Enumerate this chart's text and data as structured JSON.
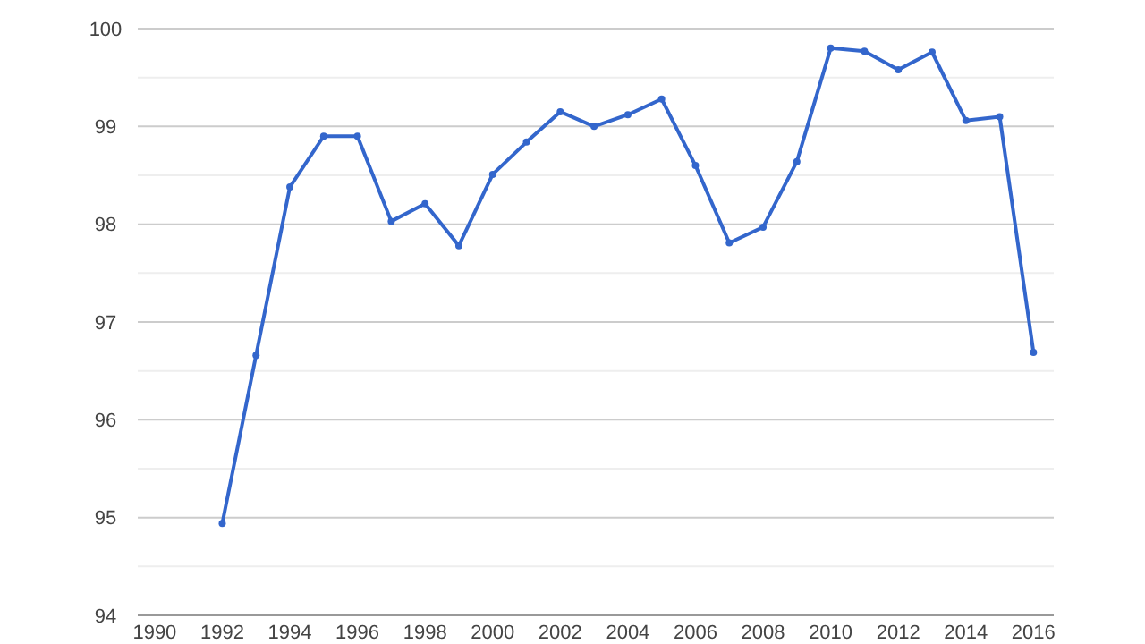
{
  "chart_data": {
    "type": "line",
    "x": [
      1992,
      1993,
      1994,
      1995,
      1996,
      1997,
      1998,
      1999,
      2000,
      2001,
      2002,
      2003,
      2004,
      2005,
      2006,
      2007,
      2008,
      2009,
      2010,
      2011,
      2012,
      2013,
      2014,
      2015,
      2016
    ],
    "series": [
      {
        "color": "#3366cc",
        "values": [
          94.94,
          96.66,
          98.38,
          98.9,
          98.9,
          98.03,
          98.21,
          97.78,
          98.51,
          98.84,
          99.15,
          99.0,
          99.12,
          99.28,
          98.6,
          97.81,
          97.97,
          98.64,
          99.8,
          99.77,
          99.58,
          99.76,
          99.06,
          99.1,
          96.69
        ]
      }
    ],
    "xlim": [
      1989.5,
      2016.6
    ],
    "xticks": [
      1990,
      1992,
      1994,
      1996,
      1998,
      2000,
      2002,
      2004,
      2006,
      2008,
      2010,
      2012,
      2014,
      2016
    ],
    "ylim": [
      94,
      100
    ],
    "yticks": [
      94,
      {
        "value": 94.5,
        "label": null
      },
      95,
      {
        "value": 95.5,
        "label": null
      },
      96,
      {
        "value": 96.5,
        "label": null
      },
      97,
      {
        "value": 97.5,
        "label": null
      },
      98,
      {
        "value": 98.5,
        "label": null
      },
      99,
      {
        "value": 99.5,
        "label": null
      },
      100
    ],
    "grid": "y",
    "marker": "circle",
    "line_style": "solid"
  }
}
